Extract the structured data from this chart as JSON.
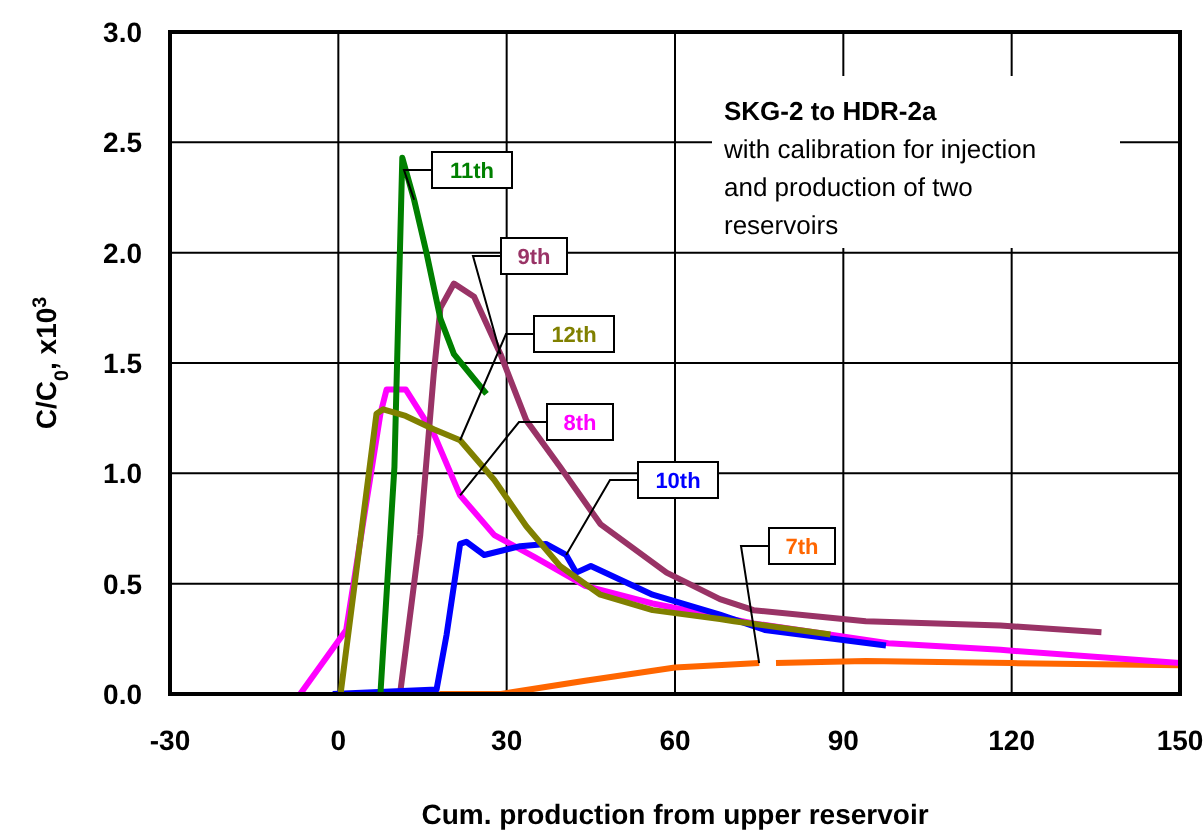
{
  "chart_data": {
    "type": "line",
    "xlabel": "Cum. production from upper reservoir",
    "ylabel": "C/C$_{0}$, x10$^{3}$",
    "annotations": [
      "SKG-2 to HDR-2a",
      "with calibration for injection and production of two reservoirs"
    ],
    "xlim": [
      -30,
      150
    ],
    "xticks": [
      -30,
      0,
      30,
      60,
      90,
      120,
      150
    ],
    "ylim": [
      0,
      3
    ],
    "yticks": [
      {
        "value": 0,
        "label": "0.0"
      },
      0.5,
      {
        "value": 1,
        "label": "1.0"
      },
      1.5,
      {
        "value": 2,
        "label": "2.0"
      },
      2.5,
      {
        "value": 3,
        "label": "3.0"
      }
    ],
    "grid": true,
    "legend": false,
    "marker": "none",
    "line_style": "solid",
    "series": [
      {
        "name": "7th",
        "color": "#ff6600",
        "x": [
          18,
          29,
          44,
          60,
          75,
          76.5,
          78,
          94,
          120,
          150
        ],
        "values": [
          0,
          0,
          0.06,
          0.12,
          0.14,
          null,
          0.14,
          0.15,
          0.14,
          0.13
        ]
      },
      {
        "name": "8th",
        "color": "#ff00ff",
        "x": [
          -6.8,
          1.4,
          7.5,
          8.6,
          12,
          17,
          21.7,
          27.8,
          35,
          44,
          56,
          74,
          98,
          118,
          150
        ],
        "values": [
          0,
          0.29,
          1.27,
          1.38,
          1.38,
          1.18,
          0.9,
          0.72,
          0.62,
          0.49,
          0.41,
          0.32,
          0.23,
          0.2,
          0.14
        ]
      },
      {
        "name": "9th",
        "color": "#993366",
        "x": [
          11,
          14.6,
          17,
          18.2,
          20.6,
          24.2,
          28.9,
          33.5,
          39.5,
          46.7,
          58.5,
          68,
          74,
          94,
          118,
          136
        ],
        "values": [
          0,
          0.72,
          1.45,
          1.75,
          1.86,
          1.8,
          1.54,
          1.24,
          1.03,
          0.77,
          0.55,
          0.43,
          0.38,
          0.33,
          0.31,
          0.28
        ]
      },
      {
        "name": "10th",
        "color": "#0000ff",
        "x": [
          -1,
          17.5,
          19.3,
          21.7,
          22.8,
          26,
          32.4,
          37,
          40.6,
          42.4,
          45,
          56,
          68,
          76,
          97.6
        ],
        "values": [
          0,
          0.02,
          0.27,
          0.68,
          0.69,
          0.63,
          0.67,
          0.68,
          0.63,
          0.55,
          0.58,
          0.45,
          0.36,
          0.29,
          0.22
        ]
      },
      {
        "name": "11th",
        "color": "#008000",
        "x": [
          7.5,
          10,
          11.4,
          13.5,
          15.7,
          18.2,
          20.6,
          26.4
        ],
        "values": [
          0,
          1.03,
          2.43,
          2.24,
          2.0,
          1.7,
          1.54,
          1.36
        ]
      },
      {
        "name": "12th",
        "color": "#808000",
        "x": [
          0.4,
          6.8,
          8,
          12,
          17,
          21.7,
          27.8,
          33.5,
          39.5,
          46.7,
          56,
          68,
          70.5,
          87.7
        ],
        "values": [
          0,
          1.27,
          1.29,
          1.26,
          1.2,
          1.15,
          0.97,
          0.76,
          0.58,
          0.45,
          0.38,
          0.34,
          0.33,
          0.27
        ]
      }
    ]
  }
}
